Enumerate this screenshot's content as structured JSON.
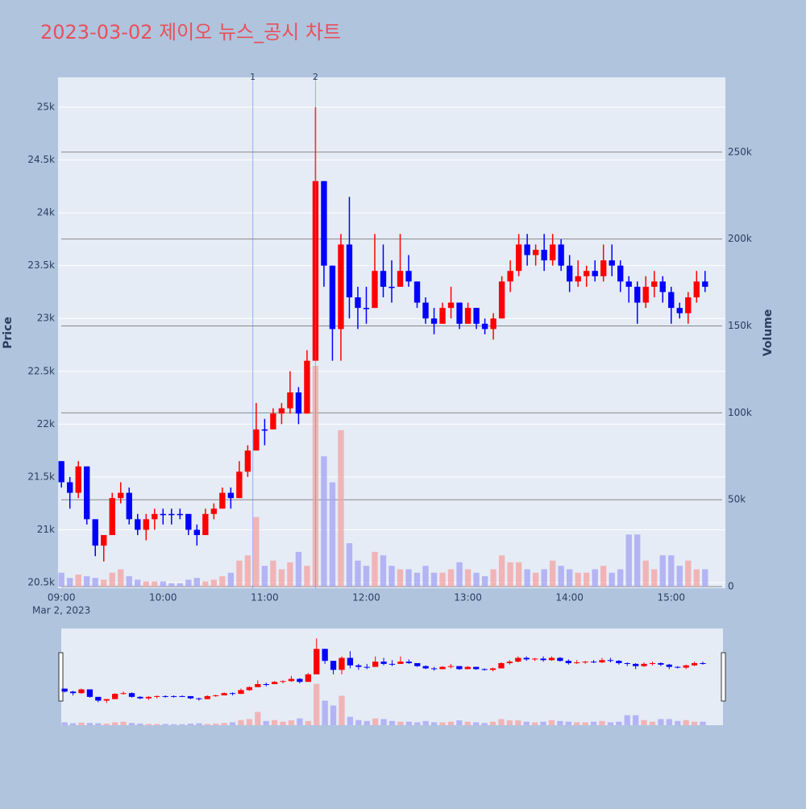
{
  "chart_data": {
    "type": "candlestick",
    "title": "2023-03-02 제이오 뉴스_공시 차트",
    "y_title": "Price",
    "y2_title": "Volume",
    "date_label": "Mar 2, 2023",
    "increasing_color": "#ff0000",
    "decreasing_color": "#0000ff",
    "x": [
      "09:00",
      "09:05",
      "09:10",
      "09:15",
      "09:20",
      "09:25",
      "09:30",
      "09:35",
      "09:40",
      "09:45",
      "09:50",
      "09:55",
      "10:00",
      "10:05",
      "10:10",
      "10:15",
      "10:20",
      "10:25",
      "10:30",
      "10:35",
      "10:40",
      "10:45",
      "10:50",
      "10:55",
      "11:00",
      "11:05",
      "11:10",
      "11:15",
      "11:20",
      "11:25",
      "11:30",
      "11:35",
      "11:40",
      "11:45",
      "11:50",
      "11:55",
      "12:00",
      "12:05",
      "12:10",
      "12:15",
      "12:20",
      "12:25",
      "12:30",
      "12:35",
      "12:40",
      "12:45",
      "12:50",
      "12:55",
      "13:00",
      "13:05",
      "13:10",
      "13:15",
      "13:20",
      "13:25",
      "13:30",
      "13:35",
      "13:40",
      "13:45",
      "13:50",
      "13:55",
      "14:00",
      "14:05",
      "14:10",
      "14:15",
      "14:20",
      "14:25",
      "14:30",
      "14:35",
      "14:40",
      "14:45",
      "14:50",
      "14:55",
      "15:00",
      "15:05",
      "15:10",
      "15:15",
      "15:20"
    ],
    "open": [
      21650,
      21450,
      21350,
      21600,
      21100,
      20850,
      20950,
      21300,
      21350,
      21100,
      21000,
      21100,
      21150,
      21150,
      21150,
      21150,
      21000,
      20950,
      21150,
      21200,
      21350,
      21300,
      21550,
      21750,
      21950,
      21950,
      22100,
      22150,
      22300,
      22100,
      22600,
      24300,
      23500,
      22900,
      23700,
      23200,
      23100,
      23100,
      23450,
      23300,
      23300,
      23450,
      23350,
      23150,
      23000,
      22950,
      23100,
      23150,
      22950,
      23100,
      22950,
      22900,
      23000,
      23350,
      23450,
      23700,
      23600,
      23650,
      23550,
      23700,
      23500,
      23350,
      23400,
      23450,
      23400,
      23550,
      23500,
      23350,
      23300,
      23150,
      23300,
      23350,
      23250,
      23100,
      23050,
      23200,
      23350
    ],
    "high": [
      21650,
      21500,
      21650,
      21600,
      21100,
      20950,
      21350,
      21450,
      21400,
      21150,
      21150,
      21200,
      21200,
      21200,
      21200,
      21150,
      21050,
      21200,
      21250,
      21400,
      21400,
      21650,
      21800,
      22200,
      22050,
      22150,
      22200,
      22500,
      22350,
      22700,
      25000,
      24300,
      23500,
      23800,
      24150,
      23300,
      23300,
      23800,
      23700,
      23550,
      23800,
      23600,
      23350,
      23200,
      23100,
      23150,
      23300,
      23150,
      23150,
      23100,
      23000,
      23050,
      23400,
      23550,
      23800,
      23800,
      23700,
      23800,
      23800,
      23750,
      23600,
      23550,
      23500,
      23550,
      23700,
      23700,
      23550,
      23400,
      23350,
      23400,
      23450,
      23400,
      23300,
      23150,
      23250,
      23450,
      23450
    ],
    "low": [
      21400,
      21200,
      21300,
      21050,
      20750,
      20700,
      20950,
      21250,
      21050,
      20950,
      20900,
      21000,
      21050,
      21050,
      21100,
      20950,
      20850,
      20950,
      21100,
      21200,
      21200,
      21300,
      21500,
      21750,
      21800,
      21950,
      22000,
      22100,
      22000,
      22100,
      22600,
      23300,
      22600,
      22600,
      23000,
      22900,
      22950,
      23100,
      23200,
      23150,
      23300,
      23300,
      23100,
      22950,
      22850,
      22950,
      23000,
      22900,
      22950,
      22900,
      22850,
      22800,
      23000,
      23250,
      23400,
      23500,
      23500,
      23450,
      23500,
      23450,
      23250,
      23300,
      23300,
      23350,
      23350,
      23400,
      23250,
      23150,
      22950,
      23100,
      23200,
      23150,
      22950,
      23000,
      22950,
      23150,
      23250
    ],
    "close": [
      21450,
      21350,
      21600,
      21100,
      20850,
      20950,
      21300,
      21350,
      21100,
      21000,
      21100,
      21150,
      21150,
      21150,
      21150,
      21000,
      20950,
      21150,
      21200,
      21350,
      21300,
      21550,
      21750,
      21950,
      21950,
      22100,
      22150,
      22300,
      22100,
      22600,
      24300,
      23500,
      22900,
      23700,
      23200,
      23100,
      23100,
      23450,
      23300,
      23300,
      23450,
      23350,
      23150,
      23000,
      22950,
      23100,
      23150,
      22950,
      23100,
      22950,
      22900,
      23000,
      23350,
      23450,
      23700,
      23600,
      23650,
      23550,
      23700,
      23500,
      23350,
      23400,
      23450,
      23400,
      23550,
      23500,
      23350,
      23300,
      23150,
      23300,
      23350,
      23250,
      23100,
      23050,
      23200,
      23350,
      23300
    ],
    "volume": [
      8000,
      5000,
      7000,
      6000,
      5000,
      4000,
      8000,
      10000,
      6000,
      4000,
      3000,
      3000,
      3000,
      2000,
      2000,
      4000,
      5000,
      3000,
      4000,
      6000,
      8000,
      15000,
      18000,
      40000,
      12000,
      15000,
      10000,
      14000,
      20000,
      12000,
      127000,
      75000,
      60000,
      90000,
      25000,
      15000,
      12000,
      20000,
      18000,
      12000,
      10000,
      10000,
      8000,
      12000,
      8000,
      8000,
      10000,
      14000,
      10000,
      8000,
      6000,
      10000,
      18000,
      14000,
      14000,
      10000,
      8000,
      10000,
      15000,
      12000,
      10000,
      8000,
      8000,
      10000,
      12000,
      8000,
      10000,
      30000,
      30000,
      15000,
      10000,
      18000,
      18000,
      12000,
      15000,
      10000,
      10000
    ],
    "xlim": [
      "08:58",
      "15:32"
    ],
    "xticks": [
      "09:00",
      "10:00",
      "11:00",
      "12:00",
      "13:00",
      "14:00",
      "15:00"
    ],
    "ylim": [
      20447,
      25282
    ],
    "yticks": [
      {
        "value": 20500,
        "label": "20.5k"
      },
      {
        "value": 21000,
        "label": "21k"
      },
      {
        "value": 21500,
        "label": "21.5k"
      },
      {
        "value": 22000,
        "label": "22k"
      },
      {
        "value": 22500,
        "label": "22.5k"
      },
      {
        "value": 23000,
        "label": "23k"
      },
      {
        "value": 23500,
        "label": "23.5k"
      },
      {
        "value": 24000,
        "label": "24k"
      },
      {
        "value": 24500,
        "label": "24.5k"
      },
      {
        "value": 25000,
        "label": "25k"
      }
    ],
    "y2lim": [
      -900,
      293000
    ],
    "y2ticks": [
      0,
      {
        "value": 50000,
        "label": "50k"
      },
      {
        "value": 100000,
        "label": "100k"
      },
      {
        "value": 150000,
        "label": "150k"
      },
      {
        "value": 200000,
        "label": "200k"
      },
      {
        "value": 250000,
        "label": "250k"
      }
    ],
    "annotations": [
      {
        "x": "10:53",
        "text": "1"
      },
      {
        "x": "11:30",
        "text": "2"
      }
    ],
    "grid": true
  }
}
